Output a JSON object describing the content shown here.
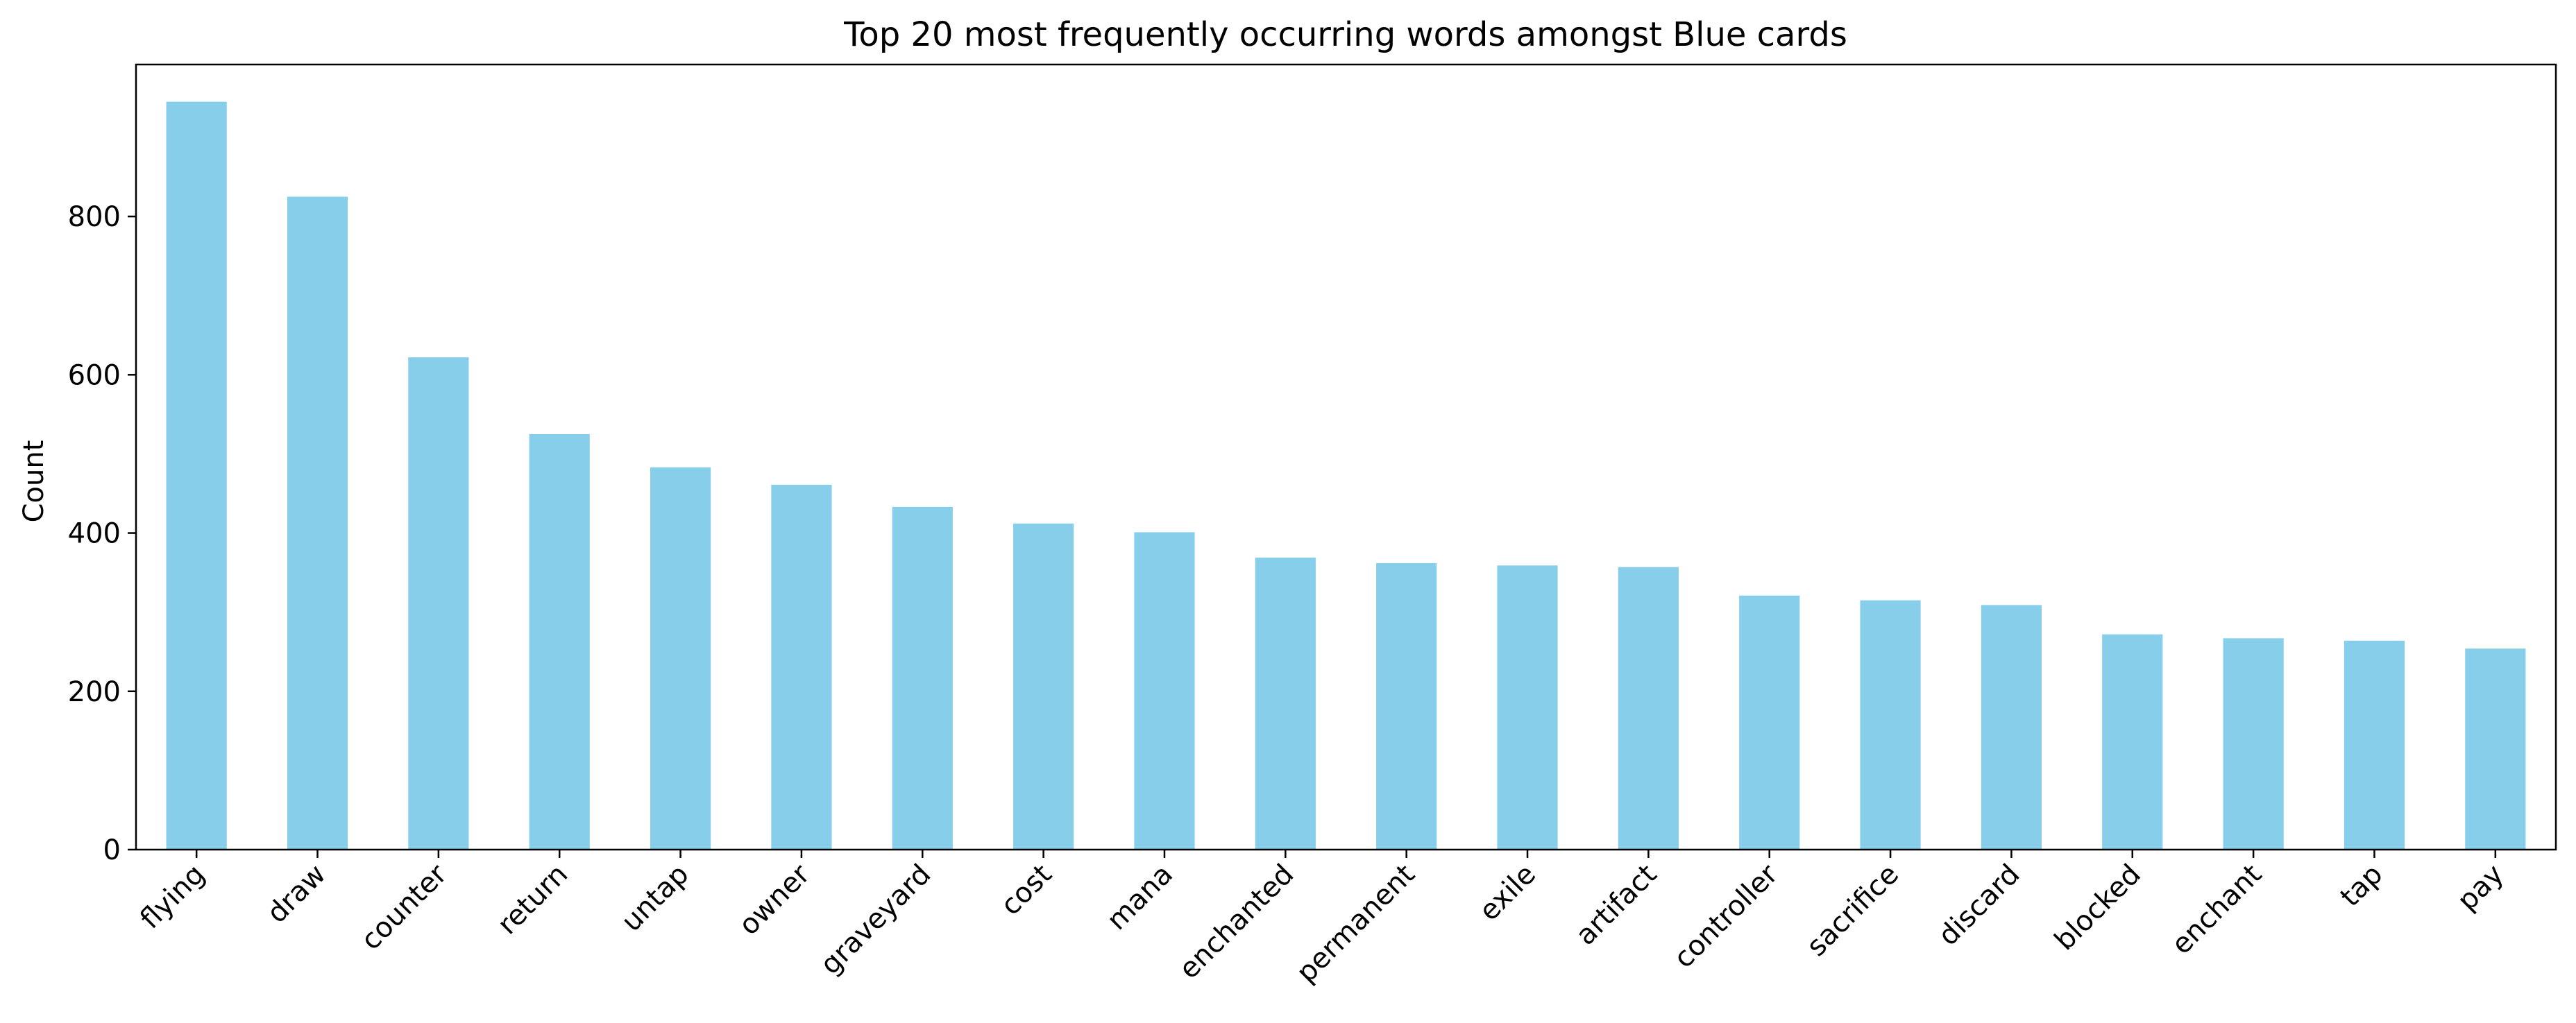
{
  "chart_data": {
    "type": "bar",
    "title": "Top 20 most frequently occurring words amongst Blue cards",
    "xlabel": "",
    "ylabel": "Count",
    "categories": [
      "flying",
      "draw",
      "counter",
      "return",
      "untap",
      "owner",
      "graveyard",
      "cost",
      "mana",
      "enchanted",
      "permanent",
      "exile",
      "artifact",
      "controller",
      "sacrifice",
      "discard",
      "blocked",
      "enchant",
      "tap",
      "pay"
    ],
    "values": [
      945,
      825,
      622,
      525,
      483,
      461,
      433,
      412,
      401,
      369,
      362,
      359,
      357,
      321,
      315,
      309,
      272,
      267,
      264,
      254
    ],
    "ylim": [
      0,
      992
    ],
    "yticks": [
      0,
      200,
      400,
      600,
      800
    ],
    "bar_color": "#87CEEB",
    "grid": false,
    "legend": "none"
  }
}
